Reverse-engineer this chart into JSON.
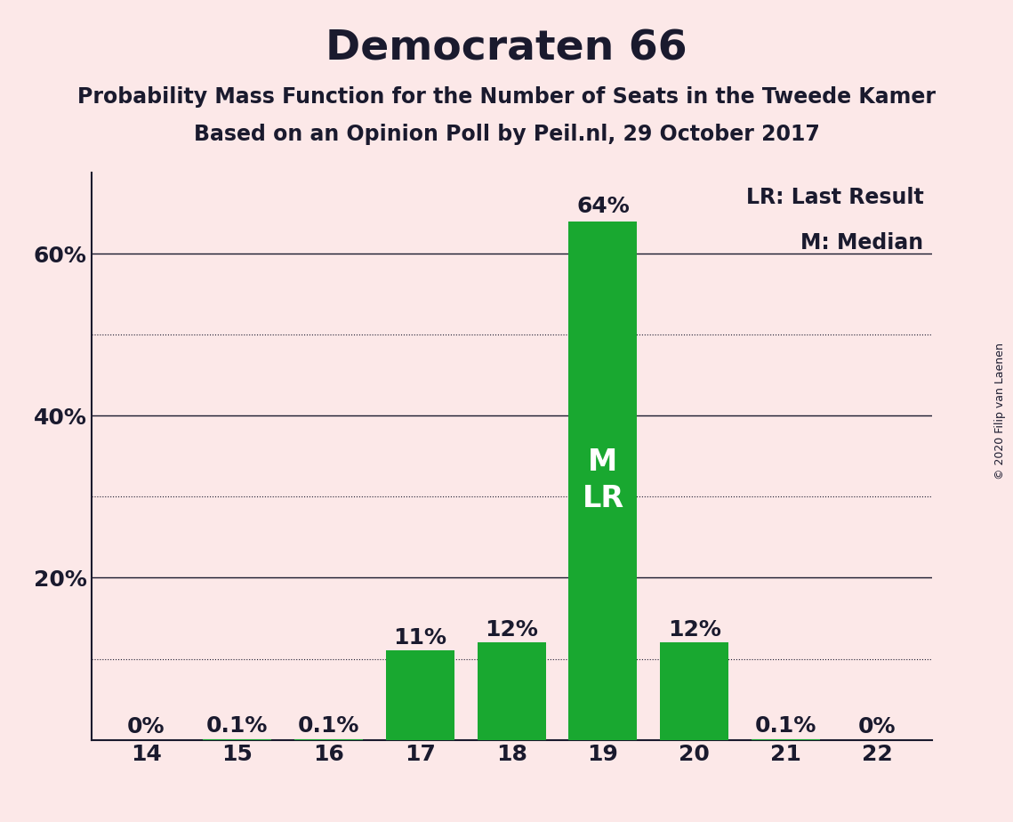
{
  "title": "Democraten 66",
  "subtitle1": "Probability Mass Function for the Number of Seats in the Tweede Kamer",
  "subtitle2": "Based on an Opinion Poll by Peil.nl, 29 October 2017",
  "copyright": "© 2020 Filip van Laenen",
  "legend_lr": "LR: Last Result",
  "legend_m": "M: Median",
  "background_color": "#fce8e8",
  "bar_color": "#19a830",
  "categories": [
    14,
    15,
    16,
    17,
    18,
    19,
    20,
    21,
    22
  ],
  "values": [
    0.0,
    0.1,
    0.1,
    11.0,
    12.0,
    64.0,
    12.0,
    0.1,
    0.0
  ],
  "labels": [
    "0%",
    "0.1%",
    "0.1%",
    "11%",
    "12%",
    "64%",
    "12%",
    "0.1%",
    "0%"
  ],
  "median_seat": 19,
  "lr_seat": 19,
  "ytick_positions": [
    0,
    20,
    40,
    60
  ],
  "ytick_labels": [
    "",
    "20%",
    "40%",
    "60%"
  ],
  "dotted_yticks": [
    10,
    30,
    50
  ],
  "solid_yticks": [
    20,
    40,
    60
  ],
  "ylim": [
    0,
    70
  ],
  "text_color": "#1a1a2e",
  "white": "#ffffff",
  "inside_label_threshold": 20.0,
  "bar_label_fontsize": 18,
  "ml_label_fontsize": 24,
  "title_fontsize": 34,
  "subtitle_fontsize": 17,
  "tick_fontsize": 18,
  "legend_fontsize": 17,
  "copyright_fontsize": 9
}
